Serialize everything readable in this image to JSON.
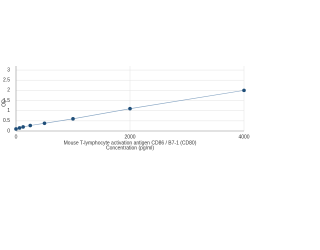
{
  "chart_data": {
    "type": "scatter",
    "title": "Mouse T-lymphocyte activation antigen CD86 / B7-1 (CD80)",
    "x_label": "Concentration (pg/ml)",
    "y_label": "OD",
    "x": [
      0,
      62.5,
      125,
      250,
      500,
      1000,
      2000,
      4000
    ],
    "values": [
      0.1,
      0.15,
      0.2,
      0.27,
      0.38,
      0.6,
      1.1,
      2.0
    ],
    "color": "#1f4e79",
    "line_color": "#7f9fbf",
    "xlim": [
      0,
      4000
    ],
    "xticks": [
      0,
      2000,
      4000
    ],
    "ylim": [
      0,
      3.2
    ],
    "yticks": [
      0,
      0.5,
      1,
      1.5,
      2,
      2.5,
      3
    ],
    "grid": true
  }
}
